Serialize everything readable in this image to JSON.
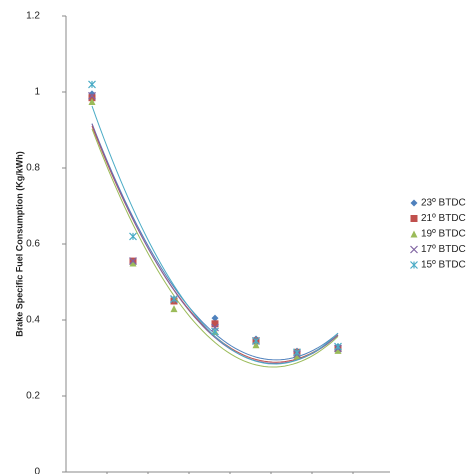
{
  "chart_data": {
    "type": "scatter",
    "y_label": "Brake Specific Fuel Consumption  (Kg/kWh)",
    "categories": [
      null,
      null,
      null,
      null,
      null,
      null,
      null
    ],
    "ylim": [
      0,
      1.2
    ],
    "yticks": [
      0,
      0.2,
      0.4,
      0.6,
      0.8,
      1,
      1.2
    ],
    "legend": "right",
    "trendline": "quadratic",
    "series": [
      {
        "name": "23º BTDC",
        "color": "#4f81bd",
        "marker": "diamond",
        "values": [
          0.995,
          0.555,
          0.455,
          0.405,
          0.35,
          0.318,
          0.33
        ]
      },
      {
        "name": "21º BTDC",
        "color": "#c0504d",
        "marker": "square",
        "values": [
          0.985,
          0.555,
          0.45,
          0.39,
          0.345,
          0.315,
          0.325
        ]
      },
      {
        "name": "19º BTDC",
        "color": "#9bbb59",
        "marker": "triangle",
        "values": [
          0.975,
          0.55,
          0.43,
          0.37,
          0.335,
          0.305,
          0.32
        ]
      },
      {
        "name": "17º BTDC",
        "color": "#8064a2",
        "marker": "cross",
        "values": [
          0.99,
          0.555,
          0.455,
          0.38,
          0.345,
          0.31,
          0.325
        ]
      },
      {
        "name": "15º BTDC",
        "color": "#4bacc6",
        "marker": "star",
        "values": [
          1.02,
          0.62,
          0.455,
          0.37,
          0.345,
          0.315,
          0.33
        ]
      }
    ]
  }
}
